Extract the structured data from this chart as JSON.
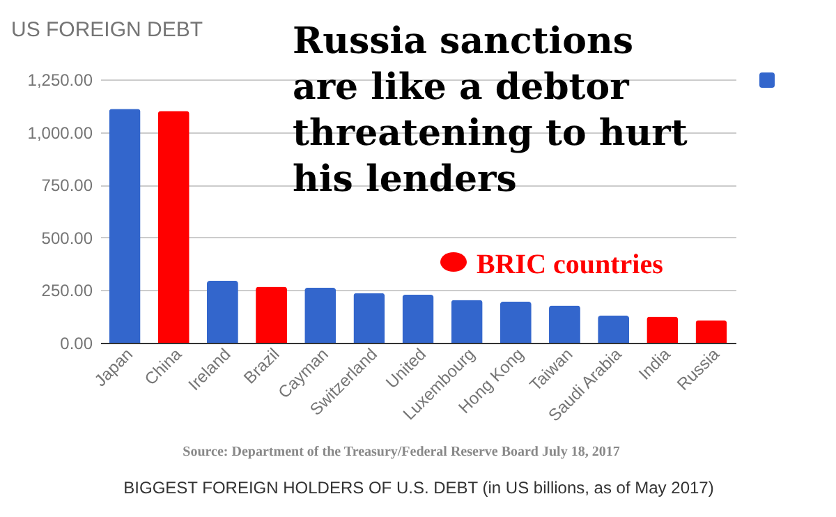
{
  "chart_data": {
    "type": "bar",
    "title": "US FOREIGN DEBT",
    "xlabel": "BIGGEST FOREIGN HOLDERS OF U.S. DEBT (in US billions, as of May 2017)",
    "annotations": [
      "Russia sanctions are like a debtor threatening to hurt his lenders",
      "BRIC countries",
      "Source: Department of the Treasury/Federal Reserve Board July 18, 2017"
    ],
    "categories": [
      "Japan",
      "China",
      "Ireland",
      "Brazil",
      "Cayman",
      "Switzerland",
      "United",
      "Luxembourg",
      "Hong Kong",
      "Taiwan",
      "Saudi Arabia",
      "India",
      "Russia"
    ],
    "values": [
      1110,
      1100,
      294,
      266,
      261,
      236,
      228,
      203,
      195,
      177,
      129,
      124,
      106
    ],
    "colors": [
      "#3366cc",
      "#ff0000",
      "#3366cc",
      "#ff0000",
      "#3366cc",
      "#3366cc",
      "#3366cc",
      "#3366cc",
      "#3366cc",
      "#3366cc",
      "#3366cc",
      "#ff0000",
      "#ff0000"
    ],
    "ylim": [
      0,
      1250
    ],
    "yticks": [
      {
        "value": 0,
        "label": "0.00"
      },
      {
        "value": 250,
        "label": "250.00"
      },
      {
        "value": 500,
        "label": "500.00"
      },
      {
        "value": 750,
        "label": "750.00"
      },
      {
        "value": 1000,
        "label": "1,000.00"
      },
      {
        "value": 1250,
        "label": "1,250.00"
      }
    ],
    "grid": "y"
  }
}
